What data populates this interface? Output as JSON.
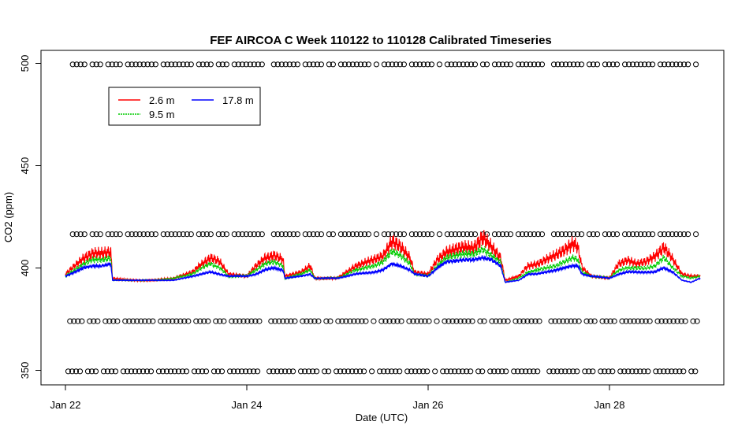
{
  "chart_data": {
    "type": "line",
    "title": "FEF AIRCOA C  Week 110122 to 110128  Calibrated Timeseries",
    "xlabel": "Date (UTC)",
    "ylabel": "CO2 (ppm)",
    "x_unit": "days",
    "xlim": [
      22.0,
      29.0
    ],
    "ylim": [
      347,
      503
    ],
    "x_ticks": [
      {
        "value": 22,
        "label": "Jan 22"
      },
      {
        "value": 24,
        "label": "Jan 24"
      },
      {
        "value": 26,
        "label": "Jan 26"
      },
      {
        "value": 28,
        "label": "Jan 28"
      }
    ],
    "y_ticks": [
      {
        "value": 350,
        "label": "350"
      },
      {
        "value": 400,
        "label": "400"
      },
      {
        "value": 450,
        "label": "450"
      },
      {
        "value": 500,
        "label": "500"
      }
    ],
    "grid": false,
    "legend": {
      "placement": "top-left"
    },
    "series": [
      {
        "name": "2.6 m",
        "color": "#ff0000",
        "points": [
          [
            22.0,
            397
          ],
          [
            22.1,
            401
          ],
          [
            22.2,
            405
          ],
          [
            22.3,
            407
          ],
          [
            22.4,
            407
          ],
          [
            22.5,
            408
          ],
          [
            22.52,
            395
          ],
          [
            22.7,
            394
          ],
          [
            23.0,
            394
          ],
          [
            23.2,
            395
          ],
          [
            23.4,
            398
          ],
          [
            23.5,
            402
          ],
          [
            23.6,
            405
          ],
          [
            23.7,
            403
          ],
          [
            23.8,
            397
          ],
          [
            24.0,
            396
          ],
          [
            24.1,
            401
          ],
          [
            24.2,
            405
          ],
          [
            24.3,
            406
          ],
          [
            24.4,
            404
          ],
          [
            24.42,
            396
          ],
          [
            24.6,
            398
          ],
          [
            24.7,
            401
          ],
          [
            24.75,
            395
          ],
          [
            25.0,
            395
          ],
          [
            25.1,
            398
          ],
          [
            25.2,
            401
          ],
          [
            25.4,
            404
          ],
          [
            25.5,
            406
          ],
          [
            25.6,
            413
          ],
          [
            25.7,
            410
          ],
          [
            25.8,
            405
          ],
          [
            25.85,
            398
          ],
          [
            26.0,
            397
          ],
          [
            26.1,
            404
          ],
          [
            26.2,
            408
          ],
          [
            26.4,
            410
          ],
          [
            26.5,
            410
          ],
          [
            26.6,
            415
          ],
          [
            26.7,
            410
          ],
          [
            26.8,
            405
          ],
          [
            26.85,
            394
          ],
          [
            27.0,
            396
          ],
          [
            27.1,
            401
          ],
          [
            27.2,
            402
          ],
          [
            27.3,
            404
          ],
          [
            27.4,
            406
          ],
          [
            27.5,
            409
          ],
          [
            27.6,
            412
          ],
          [
            27.65,
            410
          ],
          [
            27.7,
            400
          ],
          [
            27.8,
            396
          ],
          [
            28.0,
            395
          ],
          [
            28.1,
            402
          ],
          [
            28.2,
            404
          ],
          [
            28.3,
            402
          ],
          [
            28.4,
            403
          ],
          [
            28.5,
            406
          ],
          [
            28.6,
            410
          ],
          [
            28.7,
            404
          ],
          [
            28.8,
            397
          ],
          [
            28.9,
            396
          ],
          [
            29.0,
            396
          ]
        ]
      },
      {
        "name": "9.5 m",
        "color": "#00cc00",
        "points": [
          [
            22.0,
            396
          ],
          [
            22.1,
            399
          ],
          [
            22.2,
            402
          ],
          [
            22.3,
            404
          ],
          [
            22.4,
            404
          ],
          [
            22.5,
            405
          ],
          [
            22.52,
            394
          ],
          [
            22.7,
            394
          ],
          [
            23.0,
            394
          ],
          [
            23.2,
            395
          ],
          [
            23.4,
            397
          ],
          [
            23.5,
            400
          ],
          [
            23.6,
            402
          ],
          [
            23.7,
            400
          ],
          [
            23.8,
            396
          ],
          [
            24.0,
            396
          ],
          [
            24.1,
            399
          ],
          [
            24.2,
            402
          ],
          [
            24.3,
            403
          ],
          [
            24.4,
            401
          ],
          [
            24.42,
            395
          ],
          [
            24.6,
            397
          ],
          [
            24.7,
            399
          ],
          [
            24.75,
            395
          ],
          [
            25.0,
            395
          ],
          [
            25.1,
            397
          ],
          [
            25.2,
            399
          ],
          [
            25.4,
            401
          ],
          [
            25.5,
            403
          ],
          [
            25.6,
            408
          ],
          [
            25.7,
            406
          ],
          [
            25.8,
            402
          ],
          [
            25.85,
            397
          ],
          [
            26.0,
            396
          ],
          [
            26.1,
            401
          ],
          [
            26.2,
            405
          ],
          [
            26.4,
            407
          ],
          [
            26.5,
            407
          ],
          [
            26.6,
            409
          ],
          [
            26.7,
            406
          ],
          [
            26.8,
            403
          ],
          [
            26.85,
            393
          ],
          [
            27.0,
            395
          ],
          [
            27.1,
            398
          ],
          [
            27.2,
            399
          ],
          [
            27.3,
            400
          ],
          [
            27.4,
            401
          ],
          [
            27.5,
            403
          ],
          [
            27.6,
            405
          ],
          [
            27.65,
            404
          ],
          [
            27.7,
            398
          ],
          [
            27.8,
            396
          ],
          [
            28.0,
            395
          ],
          [
            28.1,
            399
          ],
          [
            28.2,
            400
          ],
          [
            28.3,
            400
          ],
          [
            28.4,
            400
          ],
          [
            28.5,
            401
          ],
          [
            28.6,
            405
          ],
          [
            28.7,
            400
          ],
          [
            28.8,
            396
          ],
          [
            28.9,
            395
          ],
          [
            29.0,
            396
          ]
        ]
      },
      {
        "name": "17.8 m",
        "color": "#0000ff",
        "points": [
          [
            22.0,
            396
          ],
          [
            22.1,
            398
          ],
          [
            22.2,
            400
          ],
          [
            22.3,
            401
          ],
          [
            22.4,
            401
          ],
          [
            22.5,
            402
          ],
          [
            22.52,
            394
          ],
          [
            22.7,
            394
          ],
          [
            23.0,
            394
          ],
          [
            23.2,
            394
          ],
          [
            23.4,
            396
          ],
          [
            23.5,
            397
          ],
          [
            23.6,
            398
          ],
          [
            23.7,
            397
          ],
          [
            23.8,
            396
          ],
          [
            24.0,
            396
          ],
          [
            24.1,
            397
          ],
          [
            24.2,
            399
          ],
          [
            24.3,
            400
          ],
          [
            24.4,
            399
          ],
          [
            24.42,
            395
          ],
          [
            24.6,
            396
          ],
          [
            24.7,
            397
          ],
          [
            24.75,
            395
          ],
          [
            25.0,
            395
          ],
          [
            25.1,
            396
          ],
          [
            25.2,
            397
          ],
          [
            25.4,
            398
          ],
          [
            25.5,
            399
          ],
          [
            25.6,
            402
          ],
          [
            25.7,
            401
          ],
          [
            25.8,
            399
          ],
          [
            25.85,
            397
          ],
          [
            26.0,
            396
          ],
          [
            26.1,
            400
          ],
          [
            26.2,
            403
          ],
          [
            26.4,
            404
          ],
          [
            26.5,
            404
          ],
          [
            26.6,
            405
          ],
          [
            26.7,
            404
          ],
          [
            26.8,
            401
          ],
          [
            26.85,
            393
          ],
          [
            27.0,
            394
          ],
          [
            27.1,
            397
          ],
          [
            27.2,
            397
          ],
          [
            27.3,
            398
          ],
          [
            27.4,
            399
          ],
          [
            27.5,
            400
          ],
          [
            27.6,
            401
          ],
          [
            27.65,
            401
          ],
          [
            27.7,
            397
          ],
          [
            27.8,
            396
          ],
          [
            28.0,
            395
          ],
          [
            28.1,
            397
          ],
          [
            28.2,
            398
          ],
          [
            28.3,
            398
          ],
          [
            28.4,
            398
          ],
          [
            28.5,
            398
          ],
          [
            28.6,
            400
          ],
          [
            28.7,
            398
          ],
          [
            28.8,
            394
          ],
          [
            28.9,
            393
          ],
          [
            29.0,
            395
          ]
        ]
      }
    ],
    "marker_rows": [
      {
        "y": 499.5,
        "x_start": 22.08,
        "x_end": 28.98
      },
      {
        "y": 416.5,
        "x_start": 22.08,
        "x_end": 28.98
      },
      {
        "y": 374,
        "x_start": 22.05,
        "x_end": 28.98
      },
      {
        "y": 349.5,
        "x_start": 22.03,
        "x_end": 28.98
      }
    ]
  }
}
